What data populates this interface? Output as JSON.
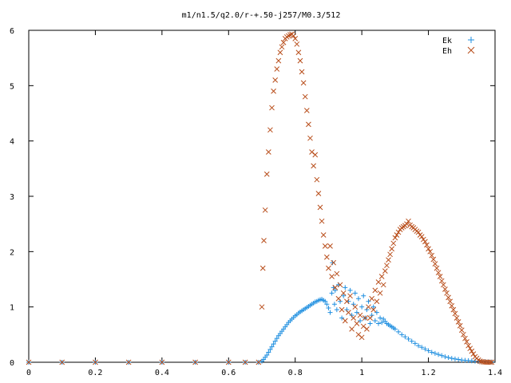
{
  "chart_data": {
    "type": "scatter",
    "title": "m1/n1.5/q2.0/r-+.50-j257/M0.3/512",
    "xlabel": "",
    "ylabel": "",
    "xlim": [
      0,
      1.4
    ],
    "ylim": [
      0,
      6
    ],
    "x_ticks": [
      "0",
      "0.2",
      "0.4",
      "0.6",
      "0.8",
      "1",
      "1.2",
      "1.4"
    ],
    "y_ticks": [
      "0",
      "1",
      "2",
      "3",
      "4",
      "5",
      "6"
    ],
    "grid": false,
    "legend_position": "top-right",
    "series": [
      {
        "name": "Ek",
        "marker": "plus",
        "color": "#1f8fe0",
        "x": [
          0.0,
          0.1,
          0.2,
          0.3,
          0.4,
          0.5,
          0.6,
          0.65,
          0.69,
          0.7,
          0.705,
          0.71,
          0.715,
          0.72,
          0.725,
          0.73,
          0.735,
          0.74,
          0.745,
          0.75,
          0.755,
          0.76,
          0.765,
          0.77,
          0.775,
          0.78,
          0.785,
          0.79,
          0.795,
          0.8,
          0.805,
          0.81,
          0.815,
          0.82,
          0.825,
          0.83,
          0.835,
          0.84,
          0.845,
          0.85,
          0.855,
          0.86,
          0.865,
          0.87,
          0.875,
          0.88,
          0.885,
          0.89,
          0.895,
          0.9,
          0.905,
          0.91,
          0.912,
          0.915,
          0.918,
          0.92,
          0.925,
          0.93,
          0.935,
          0.94,
          0.945,
          0.95,
          0.955,
          0.96,
          0.965,
          0.97,
          0.975,
          0.98,
          0.985,
          0.99,
          0.995,
          1.0,
          1.005,
          1.01,
          1.015,
          1.02,
          1.025,
          1.03,
          1.035,
          1.04,
          1.045,
          1.05,
          1.055,
          1.06,
          1.065,
          1.07,
          1.075,
          1.08,
          1.085,
          1.09,
          1.095,
          1.1,
          1.11,
          1.12,
          1.13,
          1.14,
          1.15,
          1.16,
          1.17,
          1.18,
          1.19,
          1.2,
          1.21,
          1.22,
          1.23,
          1.24,
          1.25,
          1.26,
          1.27,
          1.28,
          1.29,
          1.3,
          1.31,
          1.32,
          1.33,
          1.34,
          1.35,
          1.36,
          1.37,
          1.38,
          1.39
        ],
        "y": [
          0,
          0,
          0,
          0,
          0,
          0,
          0,
          0,
          0,
          0.02,
          0.05,
          0.09,
          0.13,
          0.18,
          0.23,
          0.28,
          0.33,
          0.38,
          0.43,
          0.48,
          0.52,
          0.56,
          0.6,
          0.64,
          0.68,
          0.72,
          0.75,
          0.78,
          0.81,
          0.84,
          0.86,
          0.89,
          0.91,
          0.93,
          0.95,
          0.97,
          0.99,
          1.01,
          1.03,
          1.05,
          1.07,
          1.09,
          1.1,
          1.12,
          1.13,
          1.14,
          1.12,
          1.1,
          1.05,
          0.98,
          0.9,
          1.25,
          1.8,
          1.35,
          1.05,
          1.3,
          0.95,
          1.4,
          1.1,
          0.8,
          1.2,
          1.35,
          0.95,
          1.1,
          1.3,
          0.85,
          1.05,
          1.25,
          0.9,
          1.15,
          0.75,
          1.0,
          1.2,
          0.8,
          0.95,
          1.1,
          0.7,
          0.85,
          1.0,
          0.75,
          0.9,
          0.7,
          0.8,
          0.72,
          0.78,
          0.74,
          0.7,
          0.68,
          0.66,
          0.64,
          0.62,
          0.6,
          0.55,
          0.5,
          0.46,
          0.42,
          0.38,
          0.34,
          0.3,
          0.27,
          0.24,
          0.21,
          0.18,
          0.16,
          0.14,
          0.12,
          0.1,
          0.085,
          0.07,
          0.06,
          0.05,
          0.04,
          0.035,
          0.03,
          0.025,
          0.02,
          0.015,
          0.012,
          0.01,
          0.008,
          0.005
        ]
      },
      {
        "name": "Eh",
        "marker": "cross",
        "color": "#b84d1a",
        "x": [
          0.0,
          0.1,
          0.2,
          0.3,
          0.4,
          0.5,
          0.6,
          0.65,
          0.69,
          0.7,
          0.703,
          0.706,
          0.71,
          0.715,
          0.72,
          0.725,
          0.73,
          0.735,
          0.74,
          0.745,
          0.75,
          0.755,
          0.76,
          0.765,
          0.77,
          0.775,
          0.78,
          0.785,
          0.79,
          0.795,
          0.8,
          0.805,
          0.81,
          0.815,
          0.82,
          0.825,
          0.83,
          0.835,
          0.84,
          0.845,
          0.85,
          0.855,
          0.86,
          0.865,
          0.87,
          0.875,
          0.88,
          0.885,
          0.89,
          0.895,
          0.9,
          0.905,
          0.91,
          0.915,
          0.92,
          0.925,
          0.93,
          0.935,
          0.94,
          0.945,
          0.95,
          0.955,
          0.96,
          0.965,
          0.97,
          0.975,
          0.98,
          0.985,
          0.99,
          0.995,
          1.0,
          1.005,
          1.01,
          1.015,
          1.02,
          1.025,
          1.03,
          1.035,
          1.04,
          1.045,
          1.05,
          1.055,
          1.06,
          1.065,
          1.07,
          1.075,
          1.08,
          1.085,
          1.09,
          1.095,
          1.1,
          1.105,
          1.11,
          1.115,
          1.12,
          1.125,
          1.13,
          1.135,
          1.14,
          1.145,
          1.15,
          1.155,
          1.16,
          1.165,
          1.17,
          1.175,
          1.18,
          1.185,
          1.19,
          1.195,
          1.2,
          1.205,
          1.21,
          1.215,
          1.22,
          1.225,
          1.23,
          1.235,
          1.24,
          1.245,
          1.25,
          1.255,
          1.26,
          1.265,
          1.27,
          1.275,
          1.28,
          1.285,
          1.29,
          1.295,
          1.3,
          1.305,
          1.31,
          1.315,
          1.32,
          1.325,
          1.33,
          1.335,
          1.34,
          1.345,
          1.35,
          1.355,
          1.36,
          1.365,
          1.37,
          1.375,
          1.38,
          1.385,
          1.39
        ],
        "y": [
          0,
          0,
          0,
          0,
          0,
          0,
          0,
          0,
          0,
          1.0,
          1.7,
          2.2,
          2.75,
          3.4,
          3.8,
          4.2,
          4.6,
          4.9,
          5.1,
          5.3,
          5.45,
          5.6,
          5.7,
          5.78,
          5.85,
          5.88,
          5.9,
          5.92,
          5.93,
          5.9,
          5.85,
          5.75,
          5.6,
          5.45,
          5.25,
          5.05,
          4.8,
          4.55,
          4.3,
          4.05,
          3.8,
          3.55,
          3.75,
          3.3,
          3.05,
          2.8,
          2.55,
          2.3,
          2.1,
          1.9,
          1.7,
          2.1,
          1.55,
          1.8,
          1.35,
          1.6,
          1.15,
          1.4,
          0.95,
          1.25,
          0.75,
          1.1,
          0.9,
          1.2,
          0.6,
          0.8,
          1.0,
          0.7,
          0.5,
          0.85,
          0.45,
          0.65,
          0.8,
          0.6,
          1.0,
          0.8,
          1.15,
          0.95,
          1.3,
          1.1,
          1.45,
          1.25,
          1.55,
          1.4,
          1.65,
          1.75,
          1.85,
          1.95,
          2.05,
          2.15,
          2.25,
          2.3,
          2.35,
          2.4,
          2.43,
          2.45,
          2.47,
          2.5,
          2.55,
          2.48,
          2.45,
          2.43,
          2.4,
          2.37,
          2.35,
          2.3,
          2.27,
          2.22,
          2.18,
          2.12,
          2.05,
          2.0,
          1.93,
          1.86,
          1.78,
          1.7,
          1.62,
          1.55,
          1.47,
          1.4,
          1.32,
          1.25,
          1.17,
          1.1,
          1.02,
          0.95,
          0.88,
          0.8,
          0.73,
          0.66,
          0.58,
          0.5,
          0.43,
          0.37,
          0.3,
          0.25,
          0.2,
          0.15,
          0.1,
          0.07,
          0.04,
          0.02,
          0.01,
          0.005,
          0.003,
          0.002,
          0.001,
          0.0,
          0.0
        ]
      }
    ]
  }
}
